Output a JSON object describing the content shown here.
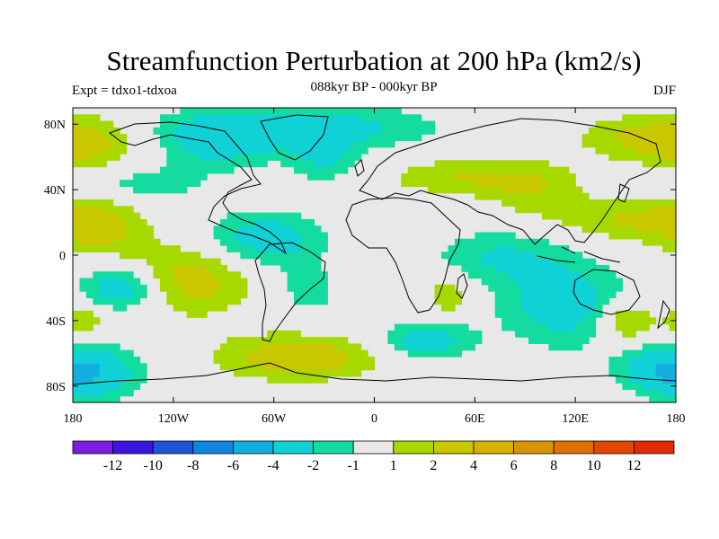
{
  "title": "Streamfunction Perturbation at 200 hPa (km2/s)",
  "subtitle": "088kyr BP - 000kyr BP",
  "left_string": "Expt = tdxo1-tdxoa",
  "right_string": "DJF",
  "lat_labels": [
    "80N",
    "40N",
    "0",
    "40S",
    "80S"
  ],
  "lon_labels": [
    "180",
    "120W",
    "60W",
    "0",
    "60E",
    "120E",
    "180"
  ],
  "colorbar": {
    "colors": [
      "#7a1fe0",
      "#3a16e0",
      "#1e55d6",
      "#0f86de",
      "#12aee0",
      "#10d2d6",
      "#14dca0",
      "#e8e8e8",
      "#a6d900",
      "#c9c800",
      "#d6b200",
      "#da9400",
      "#e07000",
      "#e24800",
      "#e02c00"
    ],
    "labels": [
      "-12",
      "-10",
      "-8",
      "-6",
      "-4",
      "-2",
      "-1",
      "1",
      "2",
      "4",
      "6",
      "8",
      "10",
      "12"
    ]
  },
  "field": {
    "lon_range": [
      -180,
      180
    ],
    "lat_range": [
      -90,
      90
    ],
    "centers": [
      {
        "lon": -45,
        "lat": 78,
        "sx": 55,
        "sy": 10,
        "v": -3
      },
      {
        "lon": -95,
        "lat": 67,
        "sx": 25,
        "sy": 12,
        "v": -2
      },
      {
        "lon": -30,
        "lat": 58,
        "sx": 14,
        "sy": 10,
        "v": -2
      },
      {
        "lon": -170,
        "lat": 68,
        "sx": 22,
        "sy": 12,
        "v": 2
      },
      {
        "lon": 160,
        "lat": 72,
        "sx": 30,
        "sy": 10,
        "v": 2
      },
      {
        "lon": 55,
        "lat": 48,
        "sx": 35,
        "sy": 8,
        "v": 2
      },
      {
        "lon": 95,
        "lat": 38,
        "sx": 20,
        "sy": 12,
        "v": 1.5
      },
      {
        "lon": 150,
        "lat": 22,
        "sx": 30,
        "sy": 10,
        "v": 2
      },
      {
        "lon": -165,
        "lat": 18,
        "sx": 20,
        "sy": 12,
        "v": 2.5
      },
      {
        "lon": -65,
        "lat": 10,
        "sx": 25,
        "sy": 12,
        "v": -3
      },
      {
        "lon": -140,
        "lat": 43,
        "sx": 28,
        "sy": 8,
        "v": -1.5
      },
      {
        "lon": -115,
        "lat": -15,
        "sx": 30,
        "sy": 15,
        "v": 3
      },
      {
        "lon": -150,
        "lat": -20,
        "sx": 18,
        "sy": 10,
        "v": -4
      },
      {
        "lon": -40,
        "lat": -22,
        "sx": 15,
        "sy": 12,
        "v": -1.5
      },
      {
        "lon": 75,
        "lat": 0,
        "sx": 28,
        "sy": 12,
        "v": -2
      },
      {
        "lon": 115,
        "lat": -30,
        "sx": 28,
        "sy": 18,
        "v": -3
      },
      {
        "lon": 150,
        "lat": -40,
        "sx": 12,
        "sy": 10,
        "v": 3
      },
      {
        "lon": 45,
        "lat": -25,
        "sx": 10,
        "sy": 8,
        "v": 2
      },
      {
        "lon": 30,
        "lat": -52,
        "sx": 20,
        "sy": 8,
        "v": -3
      },
      {
        "lon": -45,
        "lat": -62,
        "sx": 35,
        "sy": 10,
        "v": 3
      },
      {
        "lon": -165,
        "lat": -72,
        "sx": 20,
        "sy": 12,
        "v": -3
      },
      {
        "lon": 170,
        "lat": -70,
        "sx": 18,
        "sy": 10,
        "v": -3
      },
      {
        "lon": -175,
        "lat": -40,
        "sx": 10,
        "sy": 8,
        "v": 2
      }
    ]
  }
}
